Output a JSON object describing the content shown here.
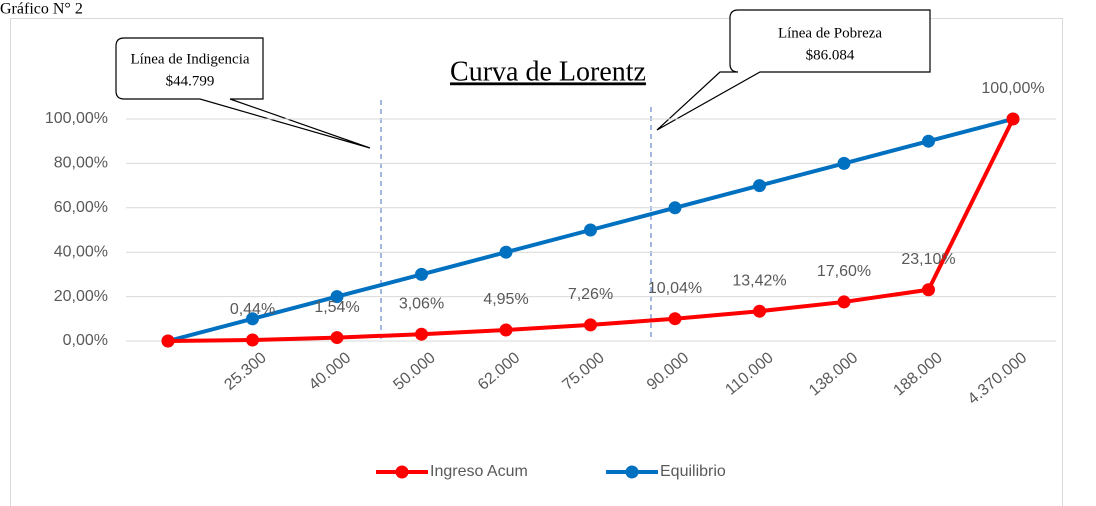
{
  "figure_label": "Gráfico N° 2",
  "chart_data": {
    "type": "line",
    "title": "Curva de Lorentz",
    "categories": [
      null,
      "25.300",
      "40.000",
      "50.000",
      "62.000",
      "75.000",
      "90.000",
      "110.000",
      "138.000",
      "188.000",
      "4.370.000"
    ],
    "series": [
      {
        "name": "Ingreso Acum",
        "color": "#ff0000",
        "values": [
          0,
          0.44,
          1.54,
          3.06,
          4.95,
          7.26,
          10.04,
          13.42,
          17.6,
          23.1,
          100
        ],
        "value_labels": [
          null,
          "0,44%",
          "1,54%",
          "3,06%",
          "4,95%",
          "7,26%",
          "10,04%",
          "13,42%",
          "17,60%",
          "23,10%",
          "100,00%"
        ]
      },
      {
        "name": "Equilibrio",
        "color": "#0070c0",
        "values": [
          0,
          10,
          20,
          30,
          40,
          50,
          60,
          70,
          80,
          90,
          100
        ]
      }
    ],
    "ylim": [
      0,
      100
    ],
    "yticks": [
      {
        "value": 0,
        "label": "0,00%"
      },
      {
        "value": 20,
        "label": "20,00%"
      },
      {
        "value": 40,
        "label": "40,00%"
      },
      {
        "value": 60,
        "label": "60,00%"
      },
      {
        "value": 80,
        "label": "80,00%"
      },
      {
        "value": 100,
        "label": "100,00%"
      }
    ],
    "grid": true,
    "legend": "bottom",
    "annotations": [
      {
        "title": "Línea de Indigencia",
        "amount": "$44.799"
      },
      {
        "title": "Línea de Pobreza",
        "amount": "$86.084"
      }
    ]
  }
}
